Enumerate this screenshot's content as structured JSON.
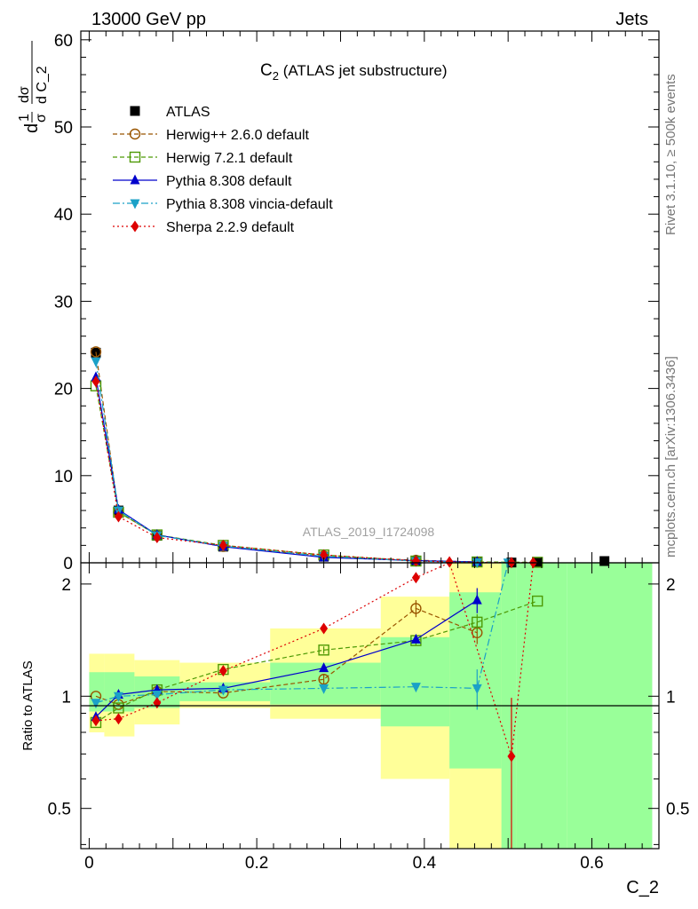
{
  "header": {
    "left": "13000 GeV pp",
    "right": "Jets"
  },
  "side_labels": {
    "rivet": "Rivet 3.1.10, ≥ 500k events",
    "mcplots": "mcplots.cern.ch [arXiv:1306.3436]"
  },
  "watermark": "ATLAS_2019_I1724098",
  "chart_data": {
    "type": "line",
    "title": "C",
    "title_sub": "2",
    "title_rest": " (ATLAS jet substructure)",
    "xlabel": "C_2",
    "ylabel_main": "1/σ dσ/d C_2",
    "ylabel_ratio": "Ratio to ATLAS",
    "xlim": [
      -0.01,
      0.68
    ],
    "ylim_main": [
      0,
      61
    ],
    "ylim_ratio": [
      0.39,
      2.28
    ],
    "ratio_log_scale": true,
    "x_ticks": [
      "0",
      "0.2",
      "0.4",
      "0.6"
    ],
    "y_ticks_main": [
      "0",
      "10",
      "20",
      "30",
      "40",
      "50",
      "60"
    ],
    "y_ticks_ratio": [
      "0.5",
      "1",
      "2"
    ],
    "bins": [
      [
        0.0,
        0.018
      ],
      [
        0.018,
        0.054
      ],
      [
        0.054,
        0.108
      ],
      [
        0.108,
        0.216
      ],
      [
        0.216,
        0.348
      ],
      [
        0.348,
        0.43
      ],
      [
        0.43,
        0.492
      ],
      [
        0.492,
        0.51
      ],
      [
        0.51,
        0.57
      ],
      [
        0.57,
        0.672
      ]
    ],
    "legend_placement": "top-left",
    "series": [
      {
        "name": "ATLAS",
        "color": "#000000",
        "marker": "square-filled",
        "x": [
          0.008,
          0.035,
          0.081,
          0.16,
          0.28,
          0.39,
          0.463,
          0.504,
          0.535,
          0.615
        ],
        "y": [
          24.1,
          6.0,
          3.1,
          1.85,
          0.7,
          0.18,
          0.06,
          0.03,
          0.03,
          0.2
        ]
      },
      {
        "name": "Herwig++ 2.6.0 default",
        "color": "#995500",
        "marker": "circle-open",
        "dash": "dashed",
        "x": [
          0.008,
          0.035,
          0.081,
          0.16,
          0.28,
          0.39,
          0.463
        ],
        "y": [
          24.2,
          5.8,
          3.2,
          1.87,
          0.78,
          0.3,
          0.09
        ],
        "ratio": [
          1.0,
          0.95,
          1.03,
          1.02,
          1.11,
          1.72,
          1.48
        ],
        "ratio_err": [
          0,
          0,
          0,
          0,
          0.03,
          0.09,
          0.1
        ]
      },
      {
        "name": "Herwig 7.2.1 default",
        "color": "#4e9a06",
        "marker": "square-open",
        "dash": "dashed",
        "x": [
          0.008,
          0.035,
          0.081,
          0.16,
          0.28,
          0.39,
          0.463,
          0.535
        ],
        "y": [
          20.3,
          5.8,
          3.2,
          2.0,
          0.9,
          0.2,
          0.1,
          0.06
        ],
        "ratio": [
          0.85,
          0.93,
          1.04,
          1.18,
          1.33,
          1.41,
          1.58,
          1.8
        ],
        "ratio_err": [
          0,
          0,
          0,
          0,
          0.03,
          0.04,
          0.08,
          0
        ]
      },
      {
        "name": "Pythia 8.308 default",
        "color": "#0000cc",
        "marker": "triangle-up",
        "dash": "solid",
        "x": [
          0.008,
          0.035,
          0.081,
          0.16,
          0.28,
          0.39,
          0.463
        ],
        "y": [
          21.3,
          6.1,
          3.2,
          1.85,
          0.62,
          0.25,
          0.11
        ],
        "ratio": [
          0.88,
          1.01,
          1.04,
          1.05,
          1.19,
          1.42,
          1.81
        ],
        "ratio_err": [
          0,
          0,
          0,
          0,
          0.02,
          0.03,
          0.14
        ]
      },
      {
        "name": "Pythia 8.308 vincia-default",
        "color": "#1ba1c7",
        "marker": "triangle-down",
        "dash": "dashdot",
        "x": [
          0.008,
          0.035,
          0.081,
          0.16,
          0.28,
          0.39,
          0.463,
          0.5
        ],
        "y": [
          23.1,
          6.0,
          3.15,
          1.92,
          0.74,
          0.19,
          0.05,
          0.03
        ],
        "ratio": [
          0.96,
          1.0,
          1.01,
          1.04,
          1.05,
          1.06,
          1.05,
          2.28
        ],
        "ratio_err": [
          0,
          0,
          0,
          0,
          0,
          0.02,
          0.13,
          0
        ]
      },
      {
        "name": "Sherpa 2.2.9 default",
        "color": "#dd0000",
        "marker": "diamond-filled",
        "dash": "dotted",
        "x": [
          0.008,
          0.035,
          0.081,
          0.16,
          0.28,
          0.39,
          0.43,
          0.504,
          0.53
        ],
        "y": [
          20.8,
          5.3,
          2.9,
          2.0,
          0.9,
          0.22,
          0.1,
          0.02,
          0.02
        ],
        "ratio": [
          0.86,
          0.87,
          0.96,
          1.17,
          1.52,
          2.08,
          2.28,
          0.69,
          2.28
        ],
        "ratio_err": [
          0,
          0,
          0,
          0,
          0,
          0,
          0,
          0.3,
          0
        ]
      }
    ]
  }
}
